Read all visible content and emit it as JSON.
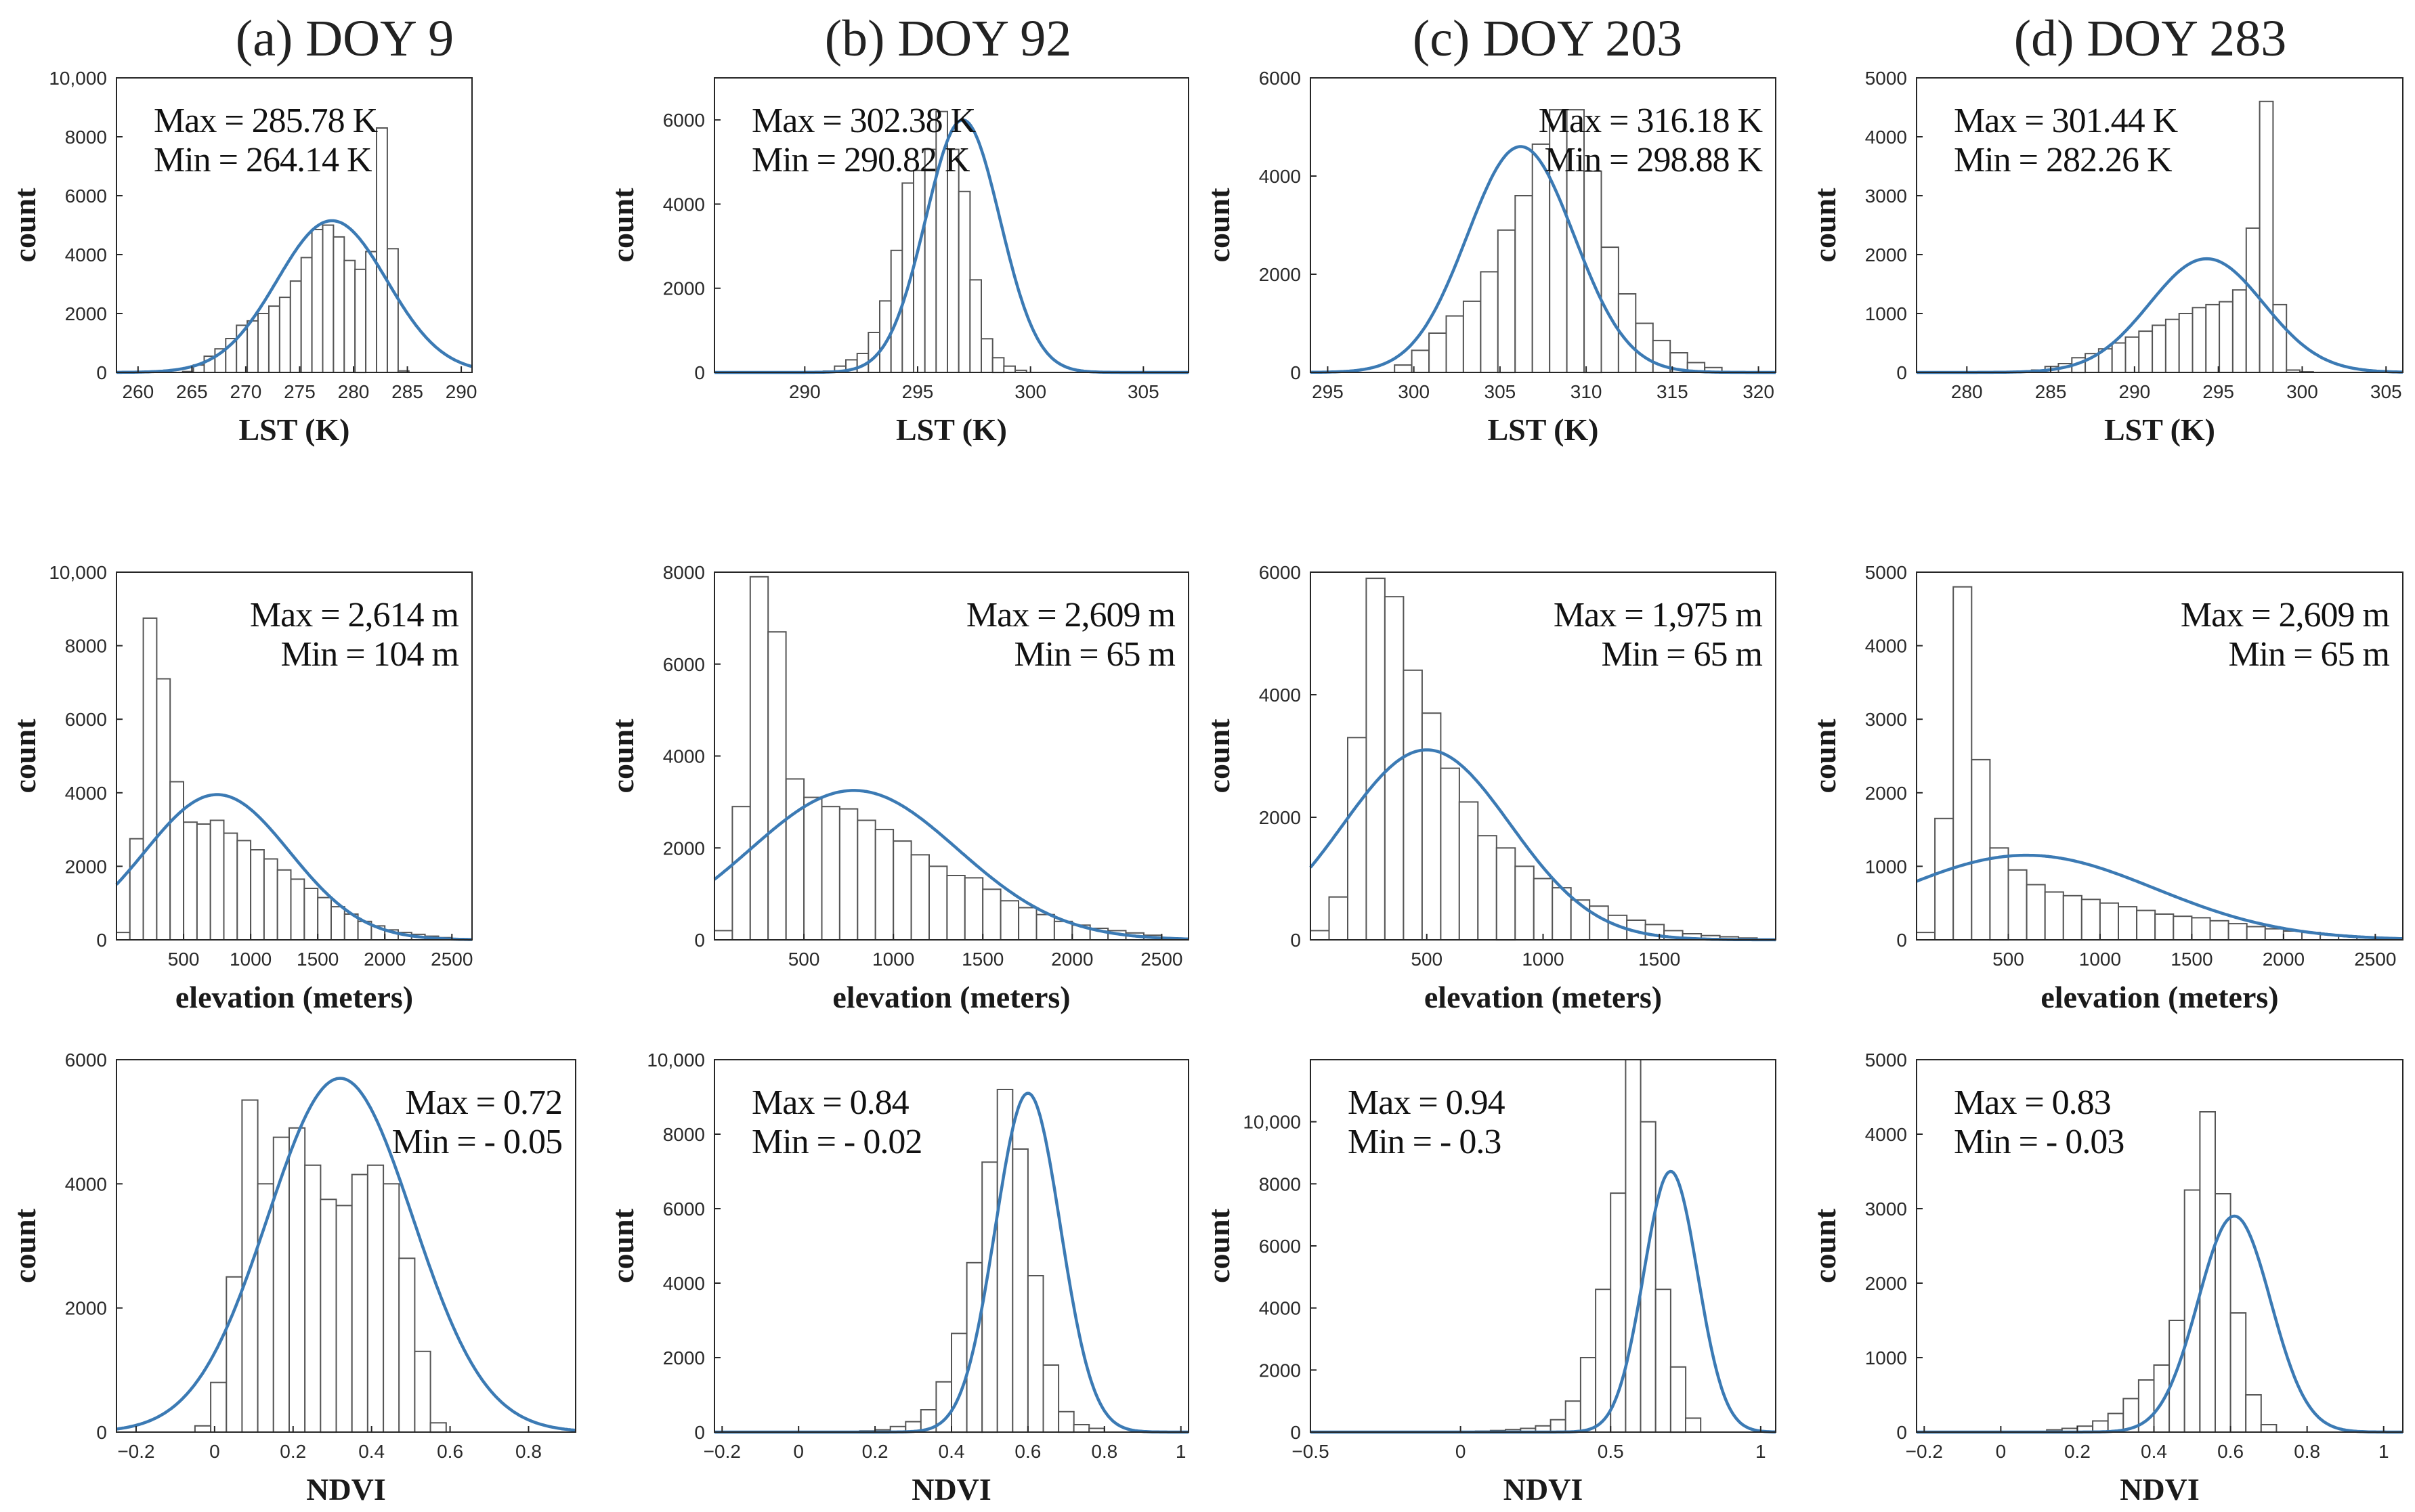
{
  "figure": {
    "column_titles": [
      "(a) DOY 9",
      "(b) DOY 92",
      "(c) DOY 203",
      "(d) DOY 283"
    ],
    "fit_color": "#3b7ab4"
  },
  "chart_data": [
    {
      "id": "a-lst",
      "type": "bar",
      "column_title": "(a) DOY 9",
      "xlabel": "LST (K)",
      "ylabel": "count",
      "xlim": [
        258,
        291
      ],
      "ylim": [
        0,
        10000
      ],
      "xticks": [
        260,
        265,
        270,
        275,
        280,
        285,
        290
      ],
      "xtick_labels": [
        "260",
        "265",
        "270",
        "275",
        "280",
        "285",
        "290"
      ],
      "yticks": [
        0,
        2000,
        4000,
        6000,
        8000,
        10000
      ],
      "ytick_labels": [
        "0",
        "2000",
        "4000",
        "6000",
        "8000",
        "10,000"
      ],
      "bins": {
        "start": 264.14,
        "width": 1.0
      },
      "counts": [
        30,
        250,
        550,
        800,
        1150,
        1600,
        1750,
        2000,
        2250,
        2550,
        3100,
        3900,
        4850,
        5000,
        4600,
        3800,
        3500,
        4100,
        8300,
        4200,
        50
      ],
      "fit": {
        "mu": 278.0,
        "sigma": 5.1,
        "peak": 5150
      },
      "annotations": [
        "Max = 285.78 K",
        "Min = 264.14 K"
      ],
      "annotation_position": "top-left"
    },
    {
      "id": "b-lst",
      "type": "bar",
      "column_title": "(b) DOY 92",
      "xlabel": "LST (K)",
      "ylabel": "count",
      "xlim": [
        286,
        307
      ],
      "ylim": [
        0,
        7000
      ],
      "xticks": [
        290,
        295,
        300,
        305
      ],
      "xtick_labels": [
        "290",
        "295",
        "300",
        "305"
      ],
      "yticks": [
        0,
        2000,
        4000,
        6000
      ],
      "ytick_labels": [
        "0",
        "2000",
        "4000",
        "6000"
      ],
      "bins": {
        "start": 290.82,
        "width": 0.5
      },
      "counts": [
        30,
        150,
        300,
        450,
        950,
        1700,
        2900,
        4500,
        4800,
        5300,
        6200,
        5300,
        4300,
        2200,
        800,
        350,
        150,
        50
      ],
      "fit": {
        "mu": 297.0,
        "sigma": 1.65,
        "peak": 6000
      },
      "annotations": [
        "Max = 302.38 K",
        "Min = 290.82 K"
      ],
      "annotation_position": "top-left"
    },
    {
      "id": "c-lst",
      "type": "bar",
      "column_title": "(c) DOY 203",
      "xlabel": "LST (K)",
      "ylabel": "count",
      "xlim": [
        294,
        321
      ],
      "ylim": [
        0,
        6000
      ],
      "xticks": [
        295,
        300,
        305,
        310,
        315,
        320
      ],
      "xtick_labels": [
        "295",
        "300",
        "305",
        "310",
        "315",
        "320"
      ],
      "bins": {
        "start": 298.88,
        "width": 1.0
      },
      "yticks": [
        0,
        2000,
        4000,
        6000
      ],
      "ytick_labels": [
        "0",
        "2000",
        "4000",
        "6000"
      ],
      "counts": [
        150,
        450,
        800,
        1150,
        1450,
        2050,
        2900,
        3600,
        4650,
        5350,
        5350,
        4100,
        2550,
        1600,
        1000,
        650,
        400,
        200,
        100
      ],
      "fit": {
        "mu": 306.2,
        "sigma": 3.1,
        "peak": 4600
      },
      "annotations": [
        "Max = 316.18 K",
        "Min = 298.88 K"
      ],
      "annotation_position": "top-right"
    },
    {
      "id": "d-lst",
      "type": "bar",
      "column_title": "(d) DOY 283",
      "xlabel": "LST (K)",
      "ylabel": "count",
      "xlim": [
        277,
        306
      ],
      "ylim": [
        0,
        5000
      ],
      "xticks": [
        280,
        285,
        290,
        295,
        300,
        305
      ],
      "xtick_labels": [
        "280",
        "285",
        "290",
        "295",
        "300",
        "305"
      ],
      "yticks": [
        0,
        1000,
        2000,
        3000,
        4000,
        5000
      ],
      "ytick_labels": [
        "0",
        "1000",
        "2000",
        "3000",
        "4000",
        "5000"
      ],
      "bins": {
        "start": 282.26,
        "width": 0.8
      },
      "counts": [
        10,
        20,
        40,
        100,
        150,
        250,
        320,
        400,
        500,
        600,
        700,
        800,
        900,
        1000,
        1100,
        1150,
        1200,
        1400,
        2450,
        4600,
        1150,
        40,
        10
      ],
      "fit": {
        "mu": 294.3,
        "sigma": 3.4,
        "peak": 1930
      },
      "annotations": [
        "Max = 301.44 K",
        "Min = 282.26 K"
      ],
      "annotation_position": "top-left"
    },
    {
      "id": "a-elev",
      "type": "bar",
      "xlabel": "elevation (meters)",
      "ylabel": "count",
      "xlim": [
        0,
        2650
      ],
      "ylim": [
        0,
        10000
      ],
      "xticks": [
        500,
        1000,
        1500,
        2000,
        2500
      ],
      "xtick_labels": [
        "500",
        "1000",
        "1500",
        "2000",
        "2500"
      ],
      "yticks": [
        0,
        2000,
        4000,
        6000,
        8000,
        10000
      ],
      "ytick_labels": [
        "0",
        "2000",
        "4000",
        "6000",
        "8000",
        "10,000"
      ],
      "bins": {
        "start": 0,
        "width": 100
      },
      "counts": [
        200,
        2750,
        8750,
        7100,
        4300,
        3200,
        3150,
        3250,
        2900,
        2700,
        2450,
        2200,
        1900,
        1650,
        1400,
        1150,
        900,
        700,
        500,
        380,
        270,
        200,
        150,
        100,
        60
      ],
      "fit": {
        "mu": 750,
        "sigma": 540,
        "peak": 3950
      },
      "annotations": [
        "Max = 2,614 m",
        "Min = 104 m"
      ],
      "annotation_position": "top-right"
    },
    {
      "id": "b-elev",
      "type": "bar",
      "xlabel": "elevation (meters)",
      "ylabel": "count",
      "xlim": [
        0,
        2650
      ],
      "ylim": [
        0,
        8000
      ],
      "xticks": [
        500,
        1000,
        1500,
        2000,
        2500
      ],
      "xtick_labels": [
        "500",
        "1000",
        "1500",
        "2000",
        "2500"
      ],
      "yticks": [
        0,
        2000,
        4000,
        6000,
        8000
      ],
      "ytick_labels": [
        "0",
        "2000",
        "4000",
        "6000",
        "8000"
      ],
      "bins": {
        "start": 0,
        "width": 100
      },
      "counts": [
        200,
        2900,
        7900,
        6700,
        3500,
        3100,
        2900,
        2850,
        2600,
        2400,
        2150,
        1850,
        1600,
        1400,
        1350,
        1100,
        850,
        700,
        550,
        400,
        320,
        250,
        200,
        150,
        100
      ],
      "fit": {
        "mu": 780,
        "sigma": 580,
        "peak": 3250
      },
      "annotations": [
        "Max = 2,609 m",
        "Min = 65 m"
      ],
      "annotation_position": "top-right"
    },
    {
      "id": "c-elev",
      "type": "bar",
      "xlabel": "elevation (meters)",
      "ylabel": "count",
      "xlim": [
        0,
        2000
      ],
      "ylim": [
        0,
        6000
      ],
      "xticks": [
        500,
        1000,
        1500
      ],
      "xtick_labels": [
        "500",
        "1000",
        "1500"
      ],
      "yticks": [
        0,
        2000,
        4000,
        6000
      ],
      "ytick_labels": [
        "0",
        "2000",
        "4000",
        "6000"
      ],
      "bins": {
        "start": 0,
        "width": 80
      },
      "counts": [
        150,
        700,
        3300,
        5900,
        5600,
        4400,
        3700,
        2800,
        2250,
        1700,
        1500,
        1200,
        1000,
        850,
        650,
        550,
        400,
        320,
        250,
        150,
        100,
        70,
        50,
        30
      ],
      "fit": {
        "mu": 500,
        "sigma": 360,
        "peak": 3100
      },
      "annotations": [
        "Max = 1,975 m",
        "Min = 65 m"
      ],
      "annotation_position": "top-right"
    },
    {
      "id": "d-elev",
      "type": "bar",
      "xlabel": "elevation (meters)",
      "ylabel": "count",
      "xlim": [
        0,
        2650
      ],
      "ylim": [
        0,
        5000
      ],
      "xticks": [
        500,
        1000,
        1500,
        2000,
        2500
      ],
      "xtick_labels": [
        "500",
        "1000",
        "1500",
        "2000",
        "2500"
      ],
      "yticks": [
        0,
        1000,
        2000,
        3000,
        4000,
        5000
      ],
      "ytick_labels": [
        "0",
        "1000",
        "2000",
        "3000",
        "4000",
        "5000"
      ],
      "bins": {
        "start": 0,
        "width": 100
      },
      "counts": [
        100,
        1650,
        4800,
        2450,
        1250,
        950,
        750,
        650,
        600,
        550,
        500,
        450,
        400,
        350,
        320,
        300,
        260,
        220,
        180,
        150,
        120,
        100,
        70,
        50,
        30
      ],
      "fit": {
        "mu": 600,
        "sigma": 700,
        "peak": 1150
      },
      "annotations": [
        "Max = 2,609 m",
        "Min = 65 m"
      ],
      "annotation_position": "top-right"
    },
    {
      "id": "a-ndvi",
      "type": "bar",
      "xlabel": "NDVI",
      "ylabel": "count",
      "xlim": [
        -0.25,
        0.92
      ],
      "ylim": [
        0,
        6000
      ],
      "xticks": [
        -0.2,
        0,
        0.2,
        0.4,
        0.6,
        0.8
      ],
      "xtick_labels": [
        "−0.2",
        "0",
        "0.2",
        "0.4",
        "0.6",
        "0.8"
      ],
      "yticks": [
        0,
        2000,
        4000,
        6000
      ],
      "ytick_labels": [
        "0",
        "2000",
        "4000",
        "6000"
      ],
      "bins": {
        "start": -0.05,
        "width": 0.04
      },
      "counts": [
        100,
        800,
        2500,
        5350,
        4000,
        4750,
        4900,
        4300,
        3750,
        3650,
        4150,
        4300,
        4000,
        2800,
        1300,
        150
      ],
      "fit": {
        "mu": 0.32,
        "sigma": 0.185,
        "peak": 5700
      },
      "annotations": [
        "Max = 0.72",
        "Min = - 0.05"
      ],
      "annotation_position": "top-right"
    },
    {
      "id": "b-ndvi",
      "type": "bar",
      "xlabel": "NDVI",
      "ylabel": "count",
      "xlim": [
        -0.22,
        1.02
      ],
      "ylim": [
        0,
        10000
      ],
      "xticks": [
        -0.2,
        0,
        0.2,
        0.4,
        0.6,
        0.8,
        1
      ],
      "xtick_labels": [
        "−0.2",
        "0",
        "0.2",
        "0.4",
        "0.6",
        "0.8",
        "1"
      ],
      "yticks": [
        0,
        2000,
        4000,
        6000,
        8000,
        10000
      ],
      "ytick_labels": [
        "0",
        "2000",
        "4000",
        "6000",
        "8000",
        "10,000"
      ],
      "bins": {
        "start": 0.16,
        "width": 0.04
      },
      "counts": [
        30,
        60,
        150,
        280,
        600,
        1350,
        2650,
        4550,
        7250,
        9200,
        7600,
        4200,
        1800,
        550,
        200,
        100
      ],
      "fit": {
        "mu": 0.6,
        "sigma": 0.085,
        "peak": 9100
      },
      "annotations": [
        "Max = 0.84",
        "Min = - 0.02"
      ],
      "annotation_position": "top-left"
    },
    {
      "id": "c-ndvi",
      "type": "bar",
      "xlabel": "NDVI",
      "ylabel": "count",
      "xlim": [
        -0.5,
        1.05
      ],
      "ylim": [
        0,
        12000
      ],
      "xticks": [
        -0.5,
        0,
        0.5,
        1
      ],
      "xtick_labels": [
        "−0.5",
        "0",
        "0.5",
        "1"
      ],
      "yticks": [
        0,
        2000,
        4000,
        6000,
        8000,
        10000
      ],
      "ytick_labels": [
        "0",
        "2000",
        "4000",
        "6000",
        "8000",
        "10,000"
      ],
      "bins": {
        "start": 0.05,
        "width": 0.05
      },
      "counts": [
        30,
        50,
        80,
        120,
        200,
        400,
        1000,
        2400,
        4600,
        7700,
        12000,
        10000,
        4600,
        2100,
        450
      ],
      "fit": {
        "mu": 0.7,
        "sigma": 0.09,
        "peak": 8400
      },
      "annotations": [
        "Max = 0.94",
        "Min = - 0.3"
      ],
      "annotation_position": "top-left"
    },
    {
      "id": "d-ndvi",
      "type": "bar",
      "xlabel": "NDVI",
      "ylabel": "count",
      "xlim": [
        -0.22,
        1.05
      ],
      "ylim": [
        0,
        5000
      ],
      "xticks": [
        -0.2,
        0,
        0.2,
        0.4,
        0.6,
        0.8,
        1
      ],
      "xtick_labels": [
        "−0.2",
        "0",
        "0.2",
        "0.4",
        "0.6",
        "0.8",
        "1"
      ],
      "yticks": [
        0,
        1000,
        2000,
        3000,
        4000,
        5000
      ],
      "ytick_labels": [
        "0",
        "1000",
        "2000",
        "3000",
        "4000",
        "5000"
      ],
      "bins": {
        "start": 0.12,
        "width": 0.04
      },
      "counts": [
        30,
        50,
        80,
        150,
        250,
        450,
        700,
        900,
        1500,
        3250,
        4300,
        3200,
        1600,
        500,
        100
      ],
      "fit": {
        "mu": 0.61,
        "sigma": 0.095,
        "peak": 2900
      },
      "annotations": [
        "Max = 0.83",
        "Min = - 0.03"
      ],
      "annotation_position": "top-left"
    }
  ]
}
